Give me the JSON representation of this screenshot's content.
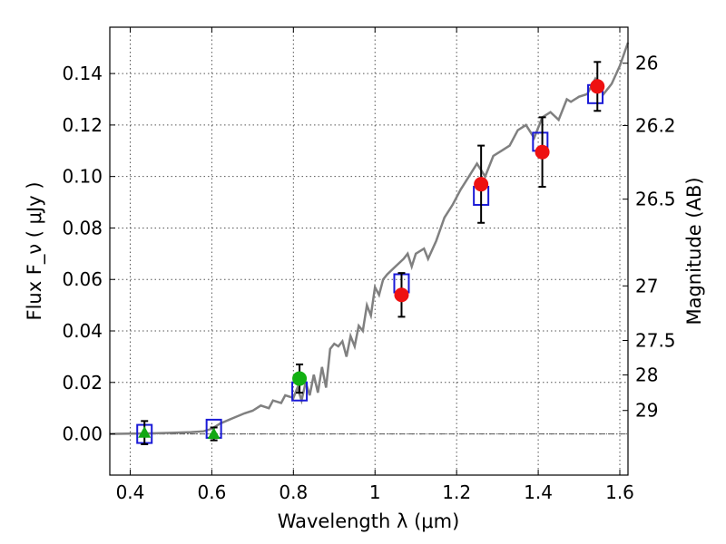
{
  "chart_data": {
    "type": "scatter",
    "xlabel": "Wavelength  λ (μm)",
    "ylabel": "Flux  F_ν  ( μJy )",
    "y2label": "Magnitude (AB)",
    "xlim": [
      0.35,
      1.62
    ],
    "ylim": [
      -0.016,
      0.158
    ],
    "x_ticks": [
      0.4,
      0.6,
      0.8,
      1.0,
      1.2,
      1.4,
      1.6
    ],
    "x_tick_labels": [
      "0.4",
      "0.6",
      "0.8",
      "1",
      "1.2",
      "1.4",
      "1.6"
    ],
    "y_ticks": [
      0.0,
      0.02,
      0.04,
      0.06,
      0.08,
      0.1,
      0.12,
      0.14
    ],
    "y_tick_labels": [
      "0.00",
      "0.02",
      "0.04",
      "0.06",
      "0.08",
      "0.10",
      "0.12",
      "0.14"
    ],
    "y2_ticks": [
      {
        "flux": 0.144,
        "label": "26"
      },
      {
        "flux": 0.1198,
        "label": "26.2"
      },
      {
        "flux": 0.0912,
        "label": "26.5"
      },
      {
        "flux": 0.0575,
        "label": "27"
      },
      {
        "flux": 0.0363,
        "label": "27.5"
      },
      {
        "flux": 0.0229,
        "label": "28"
      },
      {
        "flux": 0.0091,
        "label": "29"
      }
    ],
    "grid": true,
    "spectrum": {
      "color": "#808080",
      "x": [
        0.35,
        0.4,
        0.45,
        0.5,
        0.55,
        0.58,
        0.6,
        0.62,
        0.65,
        0.68,
        0.7,
        0.72,
        0.74,
        0.75,
        0.77,
        0.78,
        0.8,
        0.81,
        0.82,
        0.83,
        0.84,
        0.85,
        0.86,
        0.87,
        0.88,
        0.89,
        0.9,
        0.91,
        0.92,
        0.93,
        0.94,
        0.95,
        0.96,
        0.97,
        0.98,
        0.99,
        1.0,
        1.01,
        1.02,
        1.03,
        1.05,
        1.07,
        1.08,
        1.09,
        1.1,
        1.12,
        1.13,
        1.15,
        1.17,
        1.19,
        1.21,
        1.23,
        1.25,
        1.27,
        1.29,
        1.31,
        1.33,
        1.35,
        1.37,
        1.39,
        1.41,
        1.43,
        1.45,
        1.47,
        1.48,
        1.5,
        1.52,
        1.54,
        1.55,
        1.56,
        1.58,
        1.6,
        1.62
      ],
      "y": [
        0.0,
        0.0001,
        0.0002,
        0.0004,
        0.0007,
        0.001,
        0.002,
        0.004,
        0.006,
        0.008,
        0.009,
        0.011,
        0.01,
        0.013,
        0.012,
        0.015,
        0.014,
        0.018,
        0.013,
        0.02,
        0.015,
        0.023,
        0.016,
        0.026,
        0.018,
        0.033,
        0.035,
        0.034,
        0.036,
        0.03,
        0.038,
        0.034,
        0.042,
        0.04,
        0.05,
        0.046,
        0.057,
        0.054,
        0.06,
        0.062,
        0.065,
        0.068,
        0.07,
        0.065,
        0.07,
        0.072,
        0.068,
        0.075,
        0.084,
        0.089,
        0.095,
        0.1,
        0.105,
        0.1,
        0.108,
        0.11,
        0.112,
        0.118,
        0.12,
        0.115,
        0.123,
        0.125,
        0.122,
        0.13,
        0.129,
        0.131,
        0.132,
        0.138,
        0.135,
        0.132,
        0.136,
        0.143,
        0.152
      ]
    },
    "observed_points": [
      {
        "x": 0.435,
        "y": 0.0005,
        "err": 0.0045,
        "marker": "triangle",
        "color": "#12a812"
      },
      {
        "x": 0.605,
        "y": 0.0,
        "err": 0.0025,
        "marker": "triangle",
        "color": "#12a812"
      },
      {
        "x": 0.815,
        "y": 0.0215,
        "err": 0.0055,
        "marker": "circle",
        "color": "#12b012"
      },
      {
        "x": 1.065,
        "y": 0.054,
        "err": 0.0085,
        "marker": "circle",
        "color": "#ee1111"
      },
      {
        "x": 1.26,
        "y": 0.097,
        "err": 0.015,
        "marker": "circle",
        "color": "#ee1111"
      },
      {
        "x": 1.41,
        "y": 0.1095,
        "err": 0.0135,
        "marker": "circle",
        "color": "#ee1111"
      },
      {
        "x": 1.545,
        "y": 0.135,
        "err": 0.0095,
        "marker": "circle",
        "color": "#ee1111"
      }
    ],
    "model_points": [
      {
        "x": 0.435,
        "y": 0.0
      },
      {
        "x": 0.605,
        "y": 0.002
      },
      {
        "x": 0.815,
        "y": 0.0165
      },
      {
        "x": 1.065,
        "y": 0.0585
      },
      {
        "x": 1.26,
        "y": 0.0925
      },
      {
        "x": 1.405,
        "y": 0.1135
      },
      {
        "x": 1.54,
        "y": 0.132
      }
    ],
    "model_color": "#1a1ad6"
  }
}
